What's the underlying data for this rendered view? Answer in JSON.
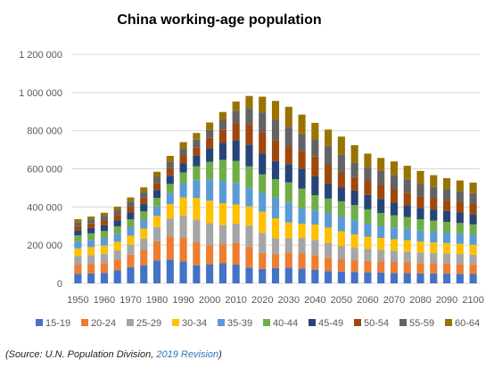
{
  "chart_data": {
    "type": "bar",
    "stacked": true,
    "title": "China working-age population",
    "xlabel": "",
    "ylabel": "",
    "ylim": [
      0,
      1200000
    ],
    "yticks": [
      0,
      200000,
      400000,
      600000,
      800000,
      1000000,
      1200000
    ],
    "ytick_labels": [
      "0",
      "200 000",
      "400 000",
      "600 000",
      "800 000",
      "1 000 000",
      "1 200 000"
    ],
    "categories": [
      "1950",
      "1955",
      "1960",
      "1965",
      "1970",
      "1975",
      "1980",
      "1985",
      "1990",
      "1995",
      "2000",
      "2005",
      "2010",
      "2015",
      "2020",
      "2025",
      "2030",
      "2035",
      "2040",
      "2045",
      "2050",
      "2055",
      "2060",
      "2065",
      "2070",
      "2075",
      "2080",
      "2085",
      "2090",
      "2095",
      "2100"
    ],
    "xtick_labels": [
      "1950",
      "1960",
      "1970",
      "1980",
      "1990",
      "2000",
      "2010",
      "2020",
      "2030",
      "2040",
      "2050",
      "2060",
      "2070",
      "2080",
      "2090",
      "2100"
    ],
    "grid": "horizontal",
    "legend_position": "bottom",
    "series": [
      {
        "name": "15-19",
        "color": "#4472c4",
        "values": [
          50000,
          52000,
          55000,
          68000,
          85000,
          95000,
          120000,
          125000,
          115000,
          95000,
          100000,
          105000,
          98000,
          83000,
          75000,
          80000,
          82000,
          78000,
          70000,
          64000,
          62000,
          60000,
          58000,
          57000,
          55000,
          54000,
          52000,
          52000,
          51000,
          50000,
          49000
        ]
      },
      {
        "name": "20-24",
        "color": "#ed7d31",
        "values": [
          48000,
          50000,
          52000,
          55000,
          65000,
          80000,
          100000,
          120000,
          125000,
          120000,
          100000,
          100000,
          115000,
          110000,
          85000,
          75000,
          80000,
          80000,
          78000,
          70000,
          64000,
          62000,
          60000,
          59000,
          57000,
          56000,
          54000,
          53000,
          53000,
          51000,
          50000
        ]
      },
      {
        "name": "25-29",
        "color": "#a5a5a5",
        "values": [
          45000,
          46000,
          48000,
          50000,
          52000,
          60000,
          75000,
          95000,
          115000,
          120000,
          115000,
          100000,
          100000,
          110000,
          105000,
          82000,
          75000,
          80000,
          80000,
          78000,
          70000,
          64000,
          62000,
          60000,
          59000,
          57000,
          56000,
          54000,
          53000,
          53000,
          51000
        ]
      },
      {
        "name": "30-34",
        "color": "#ffc000",
        "values": [
          40000,
          42000,
          43000,
          45000,
          48000,
          52000,
          58000,
          75000,
          95000,
          112000,
          118000,
          115000,
          100000,
          100000,
          110000,
          104000,
          82000,
          75000,
          80000,
          80000,
          77000,
          70000,
          64000,
          62000,
          60000,
          59000,
          57000,
          55000,
          54000,
          53000,
          52000
        ]
      },
      {
        "name": "35-39",
        "color": "#5b9bd5",
        "values": [
          37000,
          38000,
          40000,
          42000,
          44000,
          47000,
          50000,
          57000,
          75000,
          93000,
          112000,
          117000,
          113000,
          98000,
          99000,
          108000,
          103000,
          81000,
          74000,
          79000,
          79000,
          76000,
          69000,
          63000,
          62000,
          60000,
          58000,
          57000,
          55000,
          54000,
          53000
        ]
      },
      {
        "name": "40-44",
        "color": "#70ad47",
        "values": [
          32000,
          34000,
          36000,
          38000,
          41000,
          43000,
          45000,
          49000,
          56000,
          73000,
          92000,
          110000,
          116000,
          112000,
          97000,
          97000,
          107000,
          102000,
          80000,
          73000,
          78000,
          78000,
          75000,
          68000,
          63000,
          61000,
          59000,
          58000,
          56000,
          55000,
          54000
        ]
      },
      {
        "name": "45-49",
        "color": "#264478",
        "values": [
          27000,
          28000,
          31000,
          33000,
          36000,
          39000,
          41000,
          43000,
          47000,
          55000,
          72000,
          90000,
          108000,
          114000,
          110000,
          95000,
          95000,
          105000,
          100000,
          79000,
          72000,
          77000,
          76000,
          74000,
          67000,
          62000,
          60000,
          58000,
          57000,
          55000,
          54000
        ]
      },
      {
        "name": "50-54",
        "color": "#9e480e",
        "values": [
          23000,
          24000,
          26000,
          28000,
          31000,
          34000,
          37000,
          39000,
          42000,
          45000,
          53000,
          70000,
          88000,
          106000,
          112000,
          108000,
          93000,
          93000,
          102000,
          98000,
          77000,
          70000,
          75000,
          75000,
          72000,
          66000,
          61000,
          59000,
          57000,
          56000,
          55000
        ]
      },
      {
        "name": "55-59",
        "color": "#636363",
        "values": [
          19000,
          20000,
          22000,
          24000,
          26000,
          29000,
          32000,
          35000,
          37000,
          40000,
          43000,
          50000,
          67000,
          85000,
          103000,
          108000,
          104000,
          90000,
          90000,
          99000,
          95000,
          75000,
          68000,
          73000,
          73000,
          70000,
          64000,
          59000,
          57000,
          56000,
          55000
        ]
      },
      {
        "name": "60-64",
        "color": "#997300",
        "values": [
          15000,
          16000,
          17000,
          19000,
          22000,
          24000,
          27000,
          30000,
          33000,
          35000,
          38000,
          41000,
          48000,
          64000,
          82000,
          99000,
          104000,
          100000,
          87000,
          86000,
          95000,
          92000,
          73000,
          66000,
          71000,
          71000,
          68000,
          62000,
          58000,
          56000,
          55000
        ]
      }
    ]
  },
  "source": {
    "prefix": "(Source: U.N. Population Division, ",
    "link": "2019 Revision",
    "suffix": ")"
  }
}
